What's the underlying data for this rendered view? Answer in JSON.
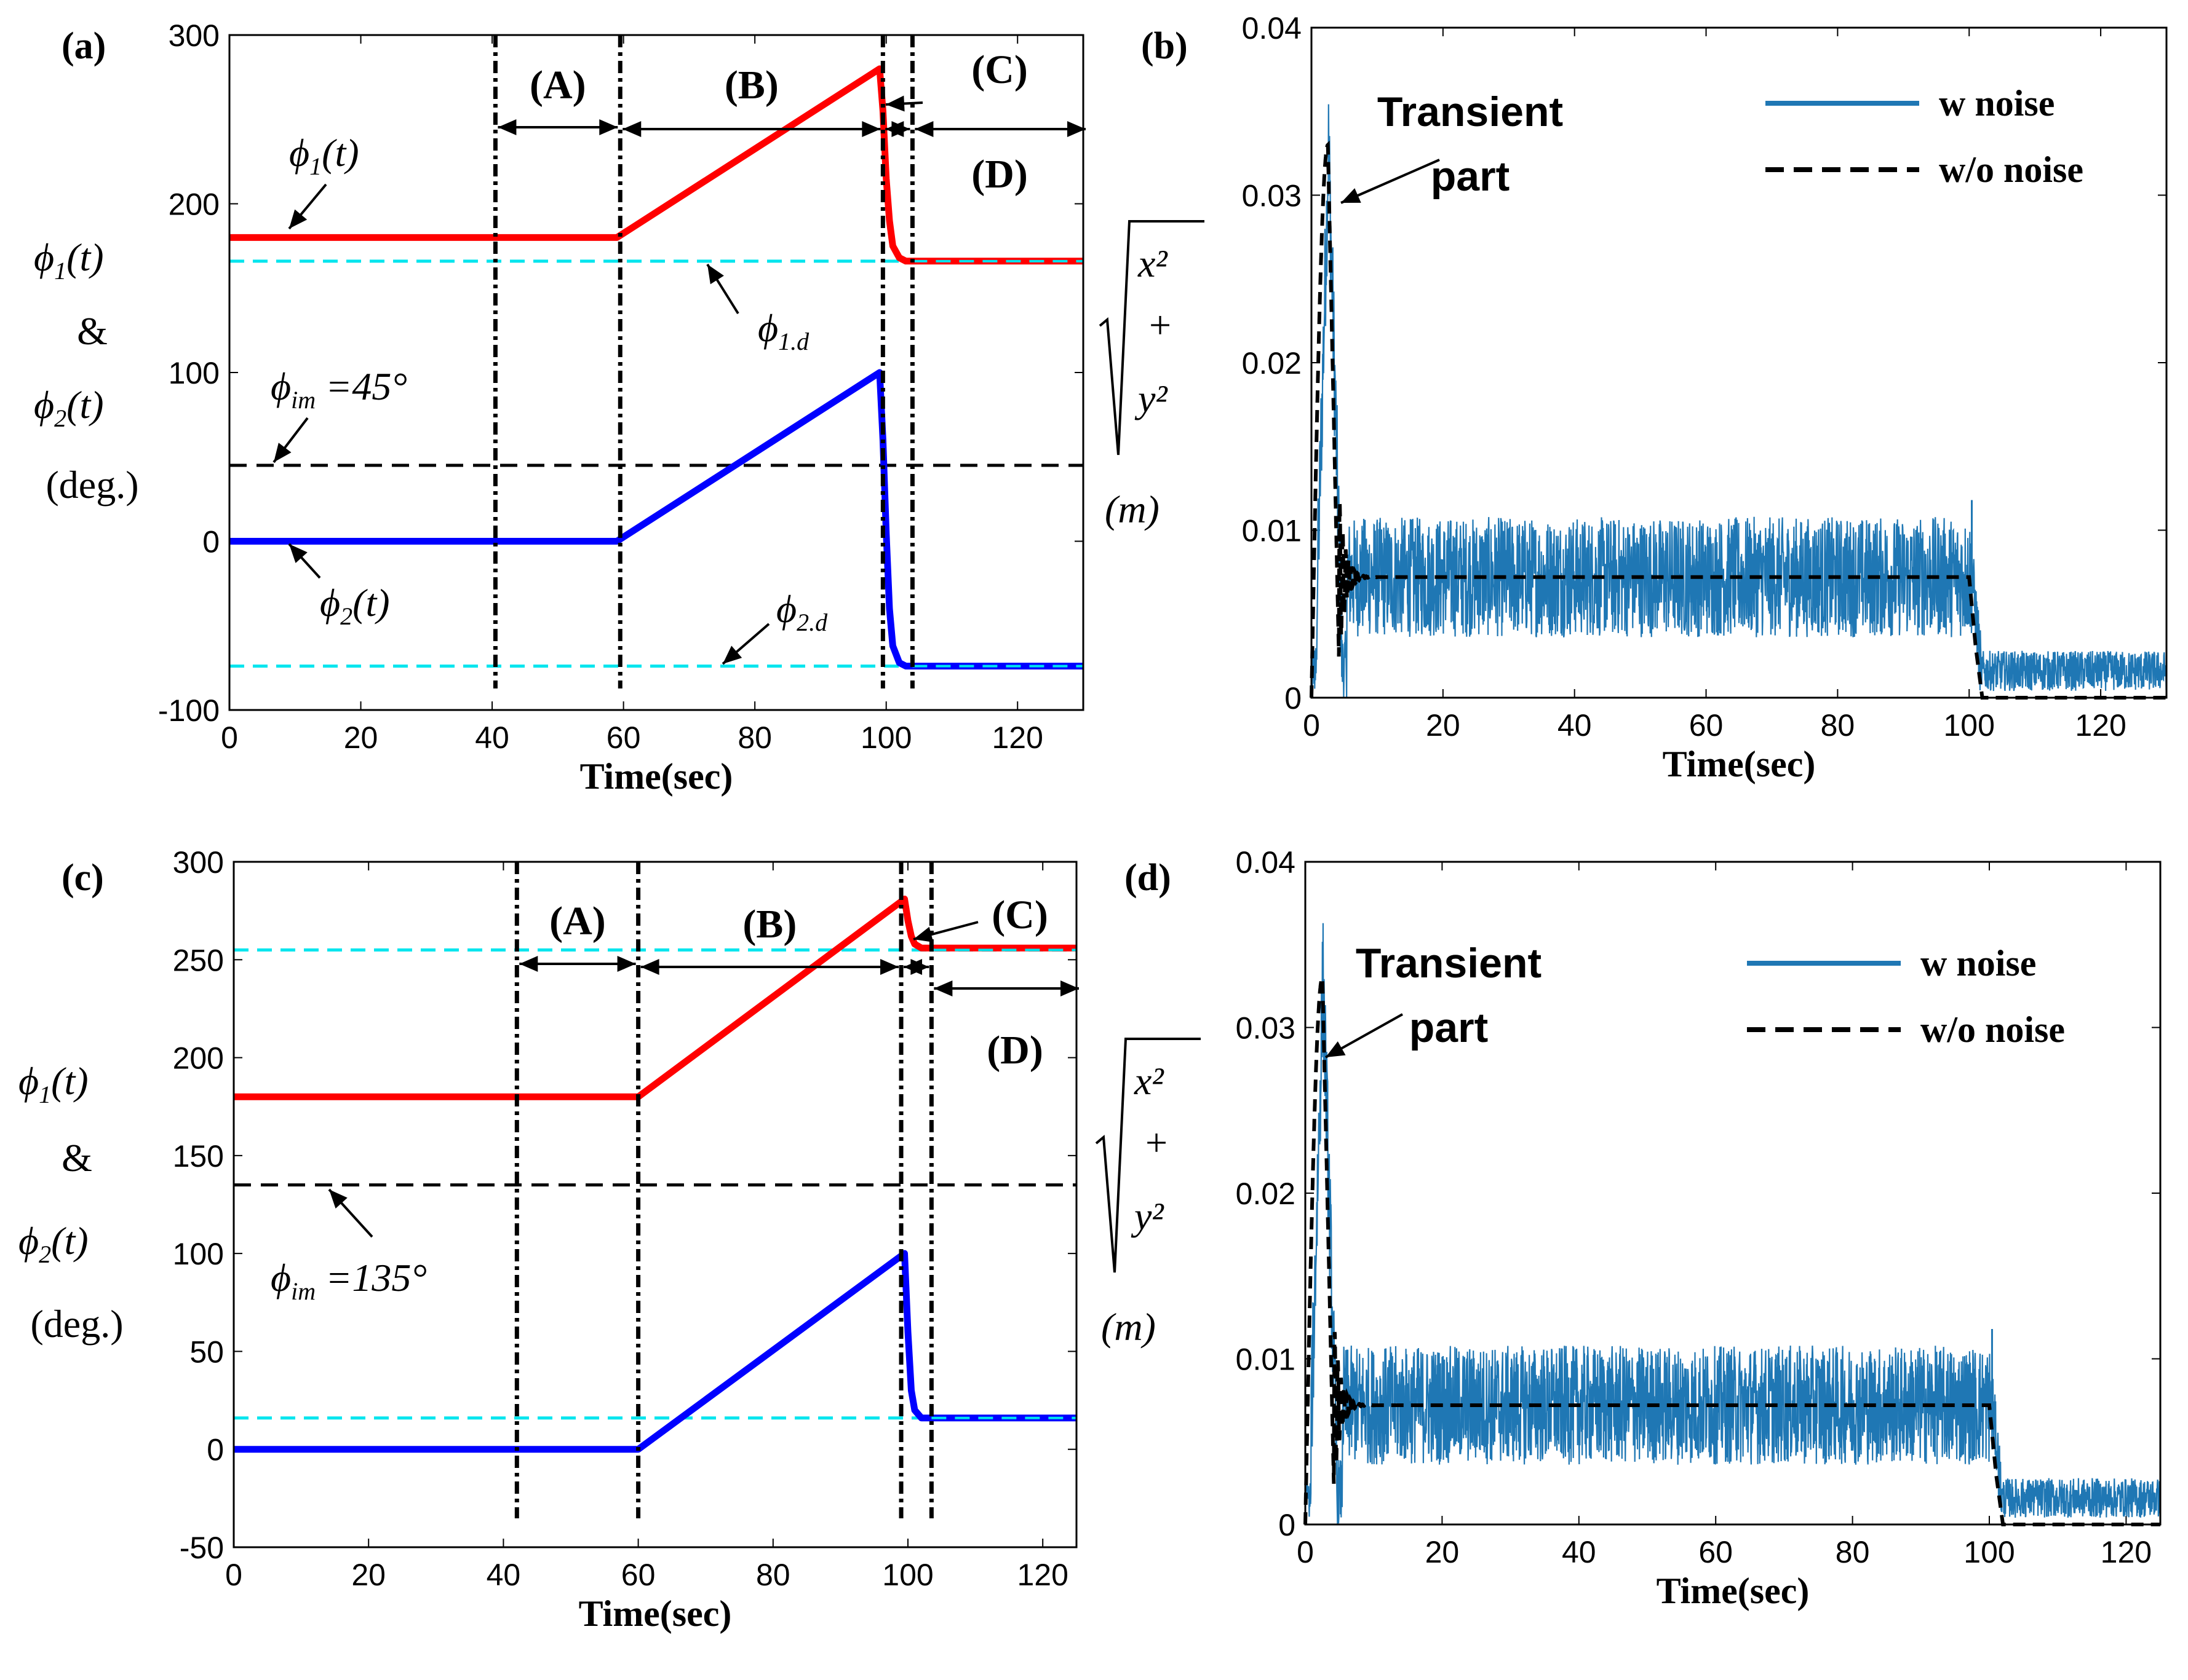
{
  "xlabel": "Time(sec)",
  "ylabel_left": {
    "phi1": "ϕ₁(t)",
    "amp": "&",
    "phi2": "ϕ₂(t)",
    "unit": "(deg.)"
  },
  "ylabel_right": {
    "sym1": "x²",
    "plus": "+",
    "sym2": "y²",
    "unit": "(m)"
  },
  "annotation_transient": [
    "Transient",
    "part"
  ],
  "colors": {
    "phi1": "#ff0000",
    "phi2": "#0000ff",
    "desired": "#00e5ee",
    "noise": "#1f77b4",
    "clean": "#000000"
  },
  "chart_data": [
    {
      "panel": "(a)",
      "type": "line",
      "xlabel": "Time(sec)",
      "ylabel": "ϕ₁(t) & ϕ₂(t) (deg.)",
      "xlim": [
        0,
        130
      ],
      "ylim": [
        -100,
        300
      ],
      "xticks": [
        0,
        20,
        40,
        60,
        80,
        100,
        120
      ],
      "yticks": [
        -100,
        0,
        100,
        200,
        300
      ],
      "series": [
        {
          "name": "ϕ1(t)",
          "x": [
            0,
            59,
            99,
            99.5,
            100,
            100.5,
            101,
            102,
            103,
            130
          ],
          "values": [
            180,
            180,
            280,
            255,
            215,
            190,
            175,
            168,
            166,
            166
          ]
        },
        {
          "name": "ϕ2(t)",
          "x": [
            0,
            59,
            99,
            99.5,
            100,
            100.5,
            101,
            102,
            103,
            130
          ],
          "values": [
            0,
            0,
            100,
            60,
            5,
            -40,
            -62,
            -72,
            -74,
            -74
          ]
        },
        {
          "name": "ϕ1,d",
          "x": [
            0,
            130
          ],
          "values": [
            166,
            166
          ]
        },
        {
          "name": "ϕ2,d",
          "x": [
            0,
            130
          ],
          "values": [
            -74,
            -74
          ]
        },
        {
          "name": "ϕim = 45°",
          "x": [
            0,
            130
          ],
          "values": [
            45,
            45
          ]
        }
      ],
      "vlines": [
        40.5,
        59.5,
        99.5,
        104
      ],
      "regions": [
        {
          "label": "(A)",
          "from": 40.5,
          "to": 59.5
        },
        {
          "label": "(B)",
          "from": 59.5,
          "to": 99.5
        },
        {
          "label": "(C)",
          "from": 99.5,
          "to": 104
        },
        {
          "label": "(D)",
          "from": 104,
          "to": 130
        }
      ],
      "labels": {
        "phi1": "ϕ1(t)",
        "phi2": "ϕ2(t)",
        "phi1d": "ϕ1.d",
        "phi2d": "ϕ2.d",
        "im": "ϕim =45°"
      }
    },
    {
      "panel": "(b)",
      "type": "line",
      "xlabel": "Time(sec)",
      "ylabel": "√(x² + y²) (m)",
      "xlim": [
        0,
        130
      ],
      "ylim": [
        0,
        0.04
      ],
      "xticks": [
        0,
        20,
        40,
        60,
        80,
        100,
        120
      ],
      "yticks": [
        0,
        0.01,
        0.02,
        0.03,
        0.04
      ],
      "ytick_labels": [
        "0",
        "0.01",
        "0.02",
        "0.03",
        "0.04"
      ],
      "series": [
        {
          "name": "w noise",
          "description": "noisy magnitude, ~0.0072 ± 0.0035 for 10–100 s, ~0.0015 ± 0.0012 after 101 s, transient peak 0.036 near 2.5 s"
        },
        {
          "name": "w/o noise",
          "x": [
            0,
            1,
            2.5,
            4,
            6,
            9,
            100,
            101,
            102,
            130
          ],
          "values": [
            0,
            0.02,
            0.033,
            0.015,
            0.004,
            0.0072,
            0.0072,
            0.003,
            0,
            0
          ]
        }
      ],
      "legend": [
        "w noise",
        "w/o noise"
      ],
      "legend_position": "top-right"
    },
    {
      "panel": "(c)",
      "type": "line",
      "xlabel": "Time(sec)",
      "ylabel": "ϕ₁(t) & ϕ₂(t) (deg.)",
      "xlim": [
        0,
        125
      ],
      "ylim": [
        -50,
        300
      ],
      "xticks": [
        0,
        20,
        40,
        60,
        80,
        100,
        120
      ],
      "yticks": [
        -50,
        0,
        50,
        100,
        150,
        200,
        250,
        300
      ],
      "series": [
        {
          "name": "ϕ1(t)",
          "x": [
            0,
            60,
            99.5,
            100,
            100.5,
            101,
            102,
            125
          ],
          "values": [
            180,
            180,
            281,
            270,
            262,
            258,
            256,
            256
          ]
        },
        {
          "name": "ϕ2(t)",
          "x": [
            0,
            60,
            99.5,
            100,
            100.5,
            101,
            102,
            125
          ],
          "values": [
            0,
            0,
            100,
            60,
            30,
            20,
            16,
            16
          ]
        },
        {
          "name": "ϕ1,d",
          "x": [
            0,
            125
          ],
          "values": [
            255,
            255
          ]
        },
        {
          "name": "ϕ2,d",
          "x": [
            0,
            125
          ],
          "values": [
            16,
            16
          ]
        },
        {
          "name": "ϕim = 135°",
          "x": [
            0,
            125
          ],
          "values": [
            135,
            135
          ]
        }
      ],
      "vlines": [
        42,
        60,
        99,
        103.5
      ],
      "regions": [
        {
          "label": "(A)",
          "from": 42,
          "to": 60
        },
        {
          "label": "(B)",
          "from": 60,
          "to": 99
        },
        {
          "label": "(C)",
          "from": 99,
          "to": 103.5
        },
        {
          "label": "(D)",
          "from": 103.5,
          "to": 125
        }
      ],
      "labels": {
        "im": "ϕim =135°"
      }
    },
    {
      "panel": "(d)",
      "type": "line",
      "xlabel": "Time(sec)",
      "ylabel": "√(x² + y²) (m)",
      "xlim": [
        0,
        125
      ],
      "ylim": [
        0,
        0.04
      ],
      "xticks": [
        0,
        20,
        40,
        60,
        80,
        100,
        120
      ],
      "yticks": [
        0,
        0.01,
        0.02,
        0.03,
        0.04
      ],
      "ytick_labels": [
        "0",
        "0.01",
        "0.02",
        "0.03",
        "0.04"
      ],
      "series": [
        {
          "name": "w noise",
          "description": "noisy magnitude, ~0.0072 ± 0.0035 for 10–100 s, ~0.0015 ± 0.0012 after 101 s, transient peak 0.036 near 2.5 s"
        },
        {
          "name": "w/o noise",
          "x": [
            0,
            1,
            2.5,
            4,
            6,
            9,
            100,
            101,
            102,
            125
          ],
          "values": [
            0,
            0.02,
            0.033,
            0.015,
            0.004,
            0.0072,
            0.0072,
            0.003,
            0,
            0
          ]
        }
      ],
      "legend": [
        "w noise",
        "w/o noise"
      ],
      "legend_position": "top-right"
    }
  ]
}
